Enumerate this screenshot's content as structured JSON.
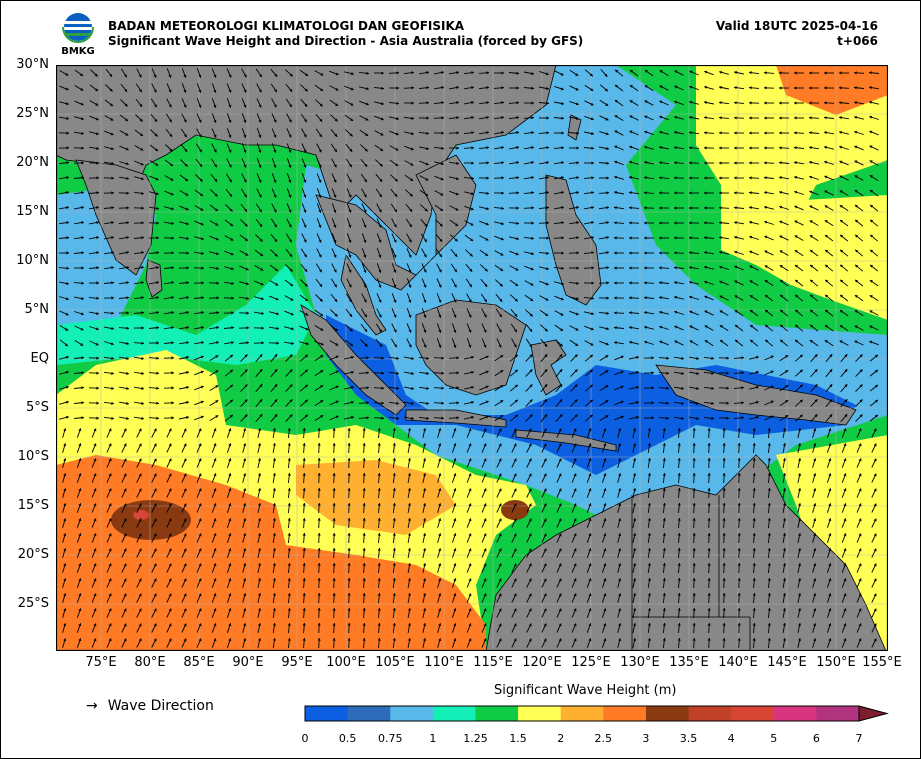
{
  "header": {
    "agency": "BADAN METEOROLOGI KLIMATOLOGI DAN GEOFISIKA",
    "product": "Significant Wave Height and Direction - Asia Australia (forced by GFS)",
    "valid": "Valid 18UTC 2025-04-16",
    "lead": "t+066",
    "logo_text": "BMKG"
  },
  "map": {
    "lat_labels": [
      "30°N",
      "25°N",
      "20°N",
      "15°N",
      "10°N",
      "5°N",
      "EQ",
      "5°S",
      "10°S",
      "15°S",
      "20°S",
      "25°S"
    ],
    "lon_labels": [
      "75°E",
      "80°E",
      "85°E",
      "90°E",
      "95°E",
      "100°E",
      "105°E",
      "110°E",
      "115°E",
      "120°E",
      "125°E",
      "130°E",
      "135°E",
      "140°E",
      "145°E",
      "150°E",
      "155°E"
    ],
    "colors": {
      "land": "#888888",
      "grid": "#b5b5b5",
      "arrow": "#000000"
    }
  },
  "legend": {
    "arrow": "→",
    "label": "Wave Direction"
  },
  "colorbar": {
    "title": "Significant Wave Height (m)",
    "ticks": [
      "0",
      "0.5",
      "0.75",
      "1",
      "1.25",
      "1.5",
      "2",
      "2.5",
      "3",
      "3.5",
      "4",
      "5",
      "6",
      "7"
    ],
    "colors": [
      "#0b5fe0",
      "#2e6bb8",
      "#58b8ea",
      "#12f0b8",
      "#10cc44",
      "#ffff55",
      "#ffb030",
      "#ff7b25",
      "#8a3a10",
      "#c04128",
      "#d74534",
      "#d8357e",
      "#b0347e",
      "#7c1e2e"
    ]
  }
}
